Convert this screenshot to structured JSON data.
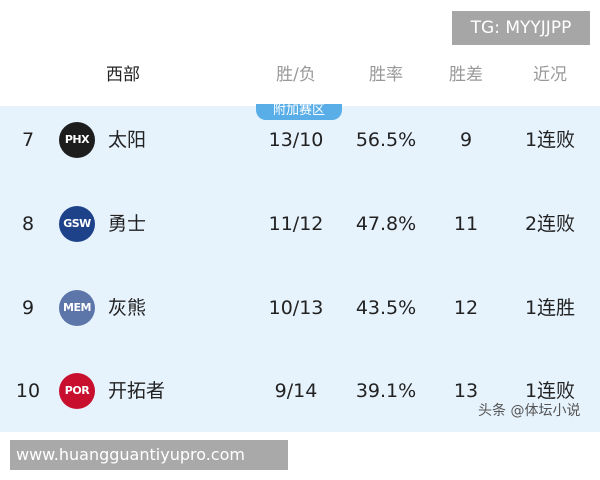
{
  "watermark_top": "TG: MYYJJPP",
  "header": {
    "conference": "西部",
    "wl": "胜/负",
    "pct": "胜率",
    "gb": "胜差",
    "streak": "近况"
  },
  "zone_badge": "附加赛区",
  "rows": [
    {
      "rank": "7",
      "abbr": "PHX",
      "team": "太阳",
      "wl": "13/10",
      "pct": "56.5%",
      "gb": "9",
      "streak": "1连败",
      "color": "#1d1d1d"
    },
    {
      "rank": "8",
      "abbr": "GSW",
      "team": "勇士",
      "wl": "11/12",
      "pct": "47.8%",
      "gb": "11",
      "streak": "2连败",
      "color": "#1d428a"
    },
    {
      "rank": "9",
      "abbr": "MEM",
      "team": "灰熊",
      "wl": "10/13",
      "pct": "43.5%",
      "gb": "12",
      "streak": "1连胜",
      "color": "#5d76a9"
    },
    {
      "rank": "10",
      "abbr": "POR",
      "team": "开拓者",
      "wl": "9/14",
      "pct": "39.1%",
      "gb": "13",
      "streak": "1连败",
      "color": "#c8102e"
    }
  ],
  "watermark_source": "头条 @体坛小说",
  "watermark_url": "www.huangguantiyupro.com"
}
